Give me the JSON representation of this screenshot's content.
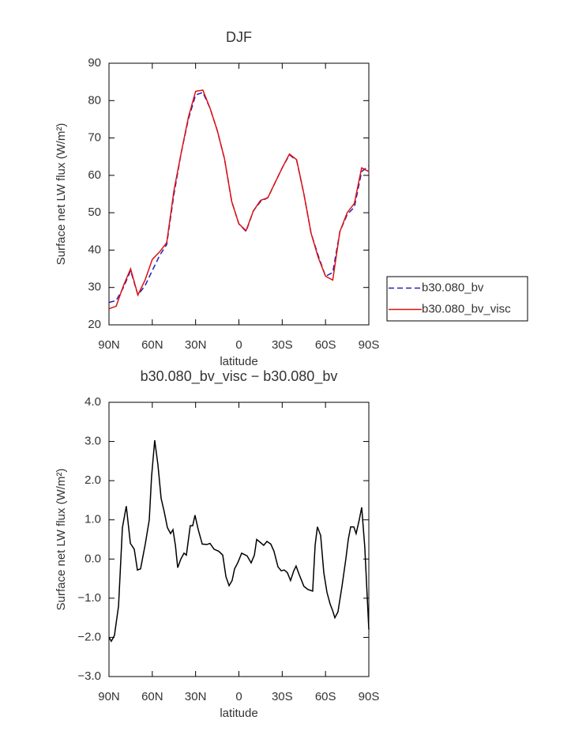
{
  "chart_data": [
    {
      "type": "line",
      "title": "DJF",
      "xlabel": "latitude",
      "ylabel": "Surface net LW flux (W/m²)",
      "x": [
        90,
        85,
        80,
        75,
        70,
        65,
        60,
        55,
        50,
        45,
        40,
        35,
        30,
        25,
        20,
        15,
        10,
        5,
        0,
        -5,
        -10,
        -15,
        -20,
        -25,
        -30,
        -35,
        -40,
        -45,
        -50,
        -55,
        -60,
        -65,
        -70,
        -75,
        -80,
        -85,
        -90
      ],
      "series": [
        {
          "name": "b30.080_bv",
          "color": "#1f1fbf",
          "dash": true,
          "values": [
            26,
            26.5,
            30,
            34.5,
            28,
            30.5,
            34.5,
            38.5,
            41.5,
            55,
            66,
            75,
            81.5,
            82.2,
            78,
            72,
            64.5,
            53,
            47,
            45,
            50.5,
            53,
            54,
            58,
            62,
            65.5,
            64,
            55,
            44.5,
            38.5,
            33,
            34,
            45,
            49.5,
            51.5,
            61,
            62.5
          ]
        },
        {
          "name": "b30.080_bv_visc",
          "color": "#e01010",
          "dash": false,
          "values": [
            24.3,
            25,
            30.5,
            35,
            28,
            32,
            37.5,
            39.5,
            42,
            56,
            66,
            75.5,
            82.5,
            82.8,
            78,
            72,
            64.5,
            53,
            47,
            45.2,
            50.5,
            53.3,
            54,
            58,
            62,
            65.7,
            64.2,
            55,
            44.5,
            38,
            33,
            32,
            45,
            50,
            52.5,
            62,
            61
          ]
        }
      ],
      "xlim": [
        90,
        -90
      ],
      "xticks": [
        {
          "value": 90,
          "label": "90N"
        },
        {
          "value": 60,
          "label": "60N"
        },
        {
          "value": 30,
          "label": "30N"
        },
        0,
        {
          "value": -30,
          "label": "30S"
        },
        {
          "value": -60,
          "label": "60S"
        },
        {
          "value": -90,
          "label": "90S"
        }
      ],
      "ylim": [
        20,
        90
      ],
      "yticks": [
        20,
        30,
        40,
        50,
        60,
        70,
        80,
        90
      ],
      "legend": "right"
    },
    {
      "type": "line",
      "title": "b30.080_bv_visc − b30.080_bv",
      "xlabel": "latitude",
      "ylabel": "Surface net LW flux (W/m²)",
      "x": [
        90,
        88.4,
        86.2,
        83.4,
        80.7,
        78,
        75.2,
        72.5,
        70.3,
        68.1,
        64.8,
        62.1,
        60.5,
        58.3,
        56.1,
        53.9,
        51.7,
        49.5,
        47.3,
        45.7,
        44,
        42.4,
        40.2,
        38,
        36.4,
        33.7,
        32,
        30.4,
        28.2,
        25.4,
        22.2,
        20,
        17.2,
        14,
        11.2,
        9,
        6.8,
        4.7,
        3,
        0.8,
        -1.9,
        -3.5,
        -5.7,
        -8.5,
        -10.7,
        -12.3,
        -15,
        -17.2,
        -19.4,
        -22.1,
        -24.3,
        -27.1,
        -29.3,
        -31.4,
        -33.6,
        -35.8,
        -38,
        -39.6,
        -41.8,
        -45.1,
        -47.9,
        -51.1,
        -52.8,
        -54.4,
        -56.6,
        -58.8,
        -61,
        -63.2,
        -64.8,
        -66.5,
        -68.6,
        -71.4,
        -74.1,
        -75.8,
        -77.4,
        -79.6,
        -81.2,
        -83.4,
        -85.1,
        -87.2,
        -90
      ],
      "values": [
        -2,
        -2.1,
        -1.95,
        -1.2,
        0.8,
        1.35,
        0.4,
        0.25,
        -0.28,
        -0.25,
        0.4,
        1,
        2.1,
        3.03,
        2.4,
        1.55,
        1.2,
        0.8,
        0.65,
        0.75,
        0.35,
        -0.22,
        0,
        0.15,
        0.1,
        0.85,
        0.85,
        1.12,
        0.75,
        0.38,
        0.37,
        0.4,
        0.25,
        0.2,
        0.1,
        -0.45,
        -0.68,
        -0.55,
        -0.25,
        -0.1,
        0.15,
        0.12,
        0.08,
        -0.1,
        0.1,
        0.5,
        0.42,
        0.35,
        0.45,
        0.38,
        0.2,
        -0.2,
        -0.3,
        -0.28,
        -0.35,
        -0.55,
        -0.3,
        -0.18,
        -0.4,
        -0.7,
        -0.78,
        -0.82,
        0.35,
        0.82,
        0.6,
        -0.35,
        -0.85,
        -1.15,
        -1.3,
        -1.5,
        -1.35,
        -0.7,
        0,
        0.5,
        0.82,
        0.82,
        0.65,
        1,
        1.32,
        0.3,
        -1.8
      ],
      "color": "#000000",
      "xlim": [
        90,
        -90
      ],
      "xticks": [
        {
          "value": 90,
          "label": "90N"
        },
        {
          "value": 60,
          "label": "60N"
        },
        {
          "value": 30,
          "label": "30N"
        },
        0,
        {
          "value": -30,
          "label": "30S"
        },
        {
          "value": -60,
          "label": "60S"
        },
        {
          "value": -90,
          "label": "90S"
        }
      ],
      "ylim": [
        -3,
        4
      ],
      "yticks": [
        {
          "value": -3,
          "label": "−3.0"
        },
        {
          "value": -2,
          "label": "−2.0"
        },
        {
          "value": -1,
          "label": "−1.0"
        },
        {
          "value": 0,
          "label": "0.0"
        },
        {
          "value": 1,
          "label": "1.0"
        },
        {
          "value": 2,
          "label": "2.0"
        },
        {
          "value": 3,
          "label": "3.0"
        },
        {
          "value": 4,
          "label": "4.0"
        }
      ]
    }
  ]
}
